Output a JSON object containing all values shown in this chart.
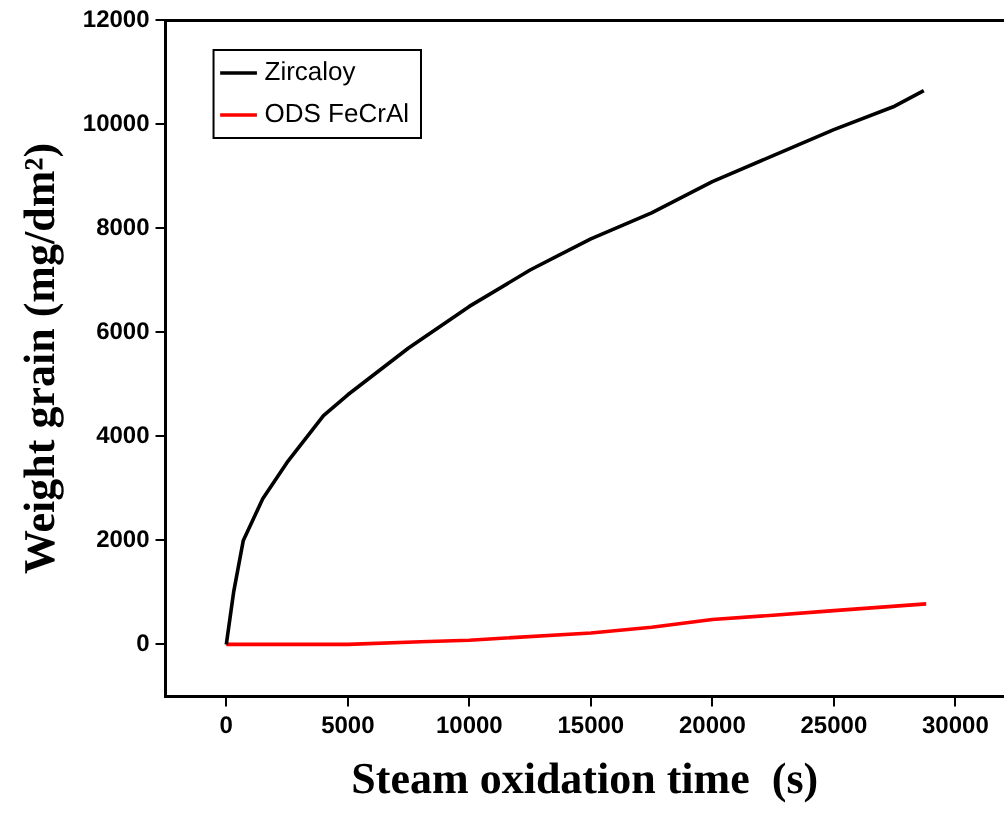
{
  "chart_data": {
    "type": "line",
    "xlabel": "Steam oxidation time  (s)",
    "ylabel": "Weight grain (mg/dm²)",
    "xlim": [
      -2500,
      32000
    ],
    "ylim": [
      -1000,
      12000
    ],
    "xticks": [
      0,
      5000,
      10000,
      15000,
      20000,
      25000,
      30000
    ],
    "yticks": [
      0,
      2000,
      4000,
      6000,
      8000,
      10000,
      12000
    ],
    "grid": false,
    "legend": "top left",
    "marker": "none",
    "line_style": "solid",
    "series": [
      {
        "name": "Zircaloy",
        "color": "#000000",
        "x": [
          0,
          300,
          700,
          1500,
          2500,
          4000,
          5000,
          7500,
          10000,
          12500,
          15000,
          17500,
          20000,
          22500,
          25000,
          27500,
          28700
        ],
        "values": [
          0,
          1000,
          2000,
          2800,
          3500,
          4400,
          4800,
          5700,
          6500,
          7200,
          7800,
          8300,
          8900,
          9400,
          9900,
          10350,
          10650
        ]
      },
      {
        "name": "ODS FeCrAl",
        "color": "#ff0000",
        "x": [
          0,
          5000,
          8000,
          10000,
          15000,
          17500,
          20000,
          22500,
          25000,
          28800
        ],
        "values": [
          0,
          0,
          50,
          80,
          220,
          330,
          480,
          560,
          650,
          780
        ]
      }
    ]
  }
}
